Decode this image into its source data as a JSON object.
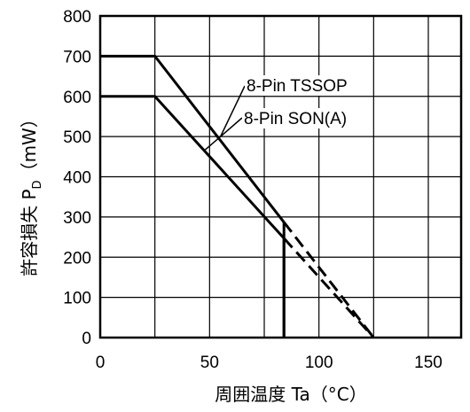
{
  "chart_data": {
    "type": "line",
    "title": "",
    "xlabel": "周囲温度 Ta（°C）",
    "ylabel": {
      "main": "許容損失 P",
      "sub": "D",
      "unit": "（mW）"
    },
    "xlim": [
      0,
      165
    ],
    "ylim": [
      0,
      800
    ],
    "x_ticks": [
      0,
      50,
      100,
      150
    ],
    "y_ticks": [
      0,
      100,
      200,
      300,
      400,
      500,
      600,
      700,
      800
    ],
    "x_grid": [
      0,
      25,
      50,
      75,
      100,
      125,
      150
    ],
    "grid": true,
    "series": [
      {
        "name": "8-Pin TSSOP",
        "points": [
          [
            0,
            700
          ],
          [
            25,
            700
          ],
          [
            84,
            287
          ]
        ],
        "dashed_points": [
          [
            84,
            287
          ],
          [
            125,
            0
          ]
        ],
        "drop_to_zero_at": 84
      },
      {
        "name": "8-Pin SON(A)",
        "points": [
          [
            0,
            600
          ],
          [
            25,
            600
          ],
          [
            84,
            247
          ]
        ],
        "dashed_points": [
          [
            84,
            247
          ],
          [
            125,
            0
          ]
        ],
        "drop_to_zero_at": 84
      }
    ],
    "annotations": [
      {
        "text": "8-Pin TSSOP",
        "series": 0,
        "leader_from": [
          55,
          500
        ]
      },
      {
        "text": "8-Pin SON(A)",
        "series": 1,
        "leader_from": [
          48,
          467
        ]
      }
    ]
  }
}
